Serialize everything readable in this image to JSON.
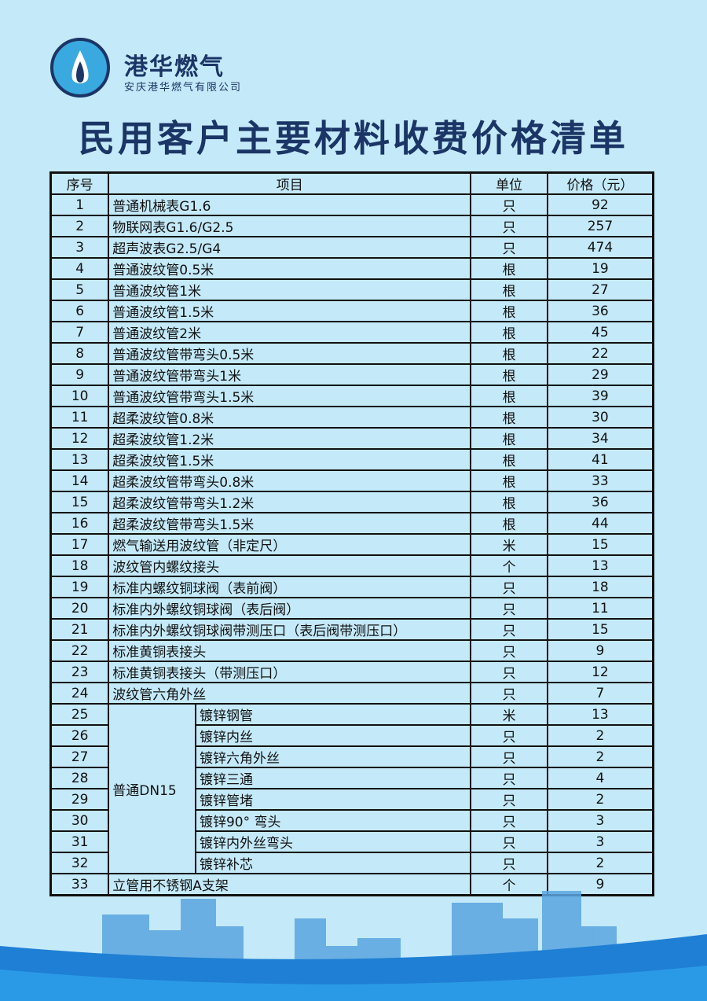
{
  "header": {
    "brand": "港华燃气",
    "company": "安庆港华燃气有限公司",
    "title": "民用客户主要材料收费价格清单"
  },
  "table": {
    "columns": [
      "序号",
      "项目",
      "单位",
      "价格（元）"
    ],
    "group_label": "普通DN15",
    "rows": [
      {
        "no": "1",
        "item": "普通机械表G1.6",
        "unit": "只",
        "price": "92"
      },
      {
        "no": "2",
        "item": "物联网表G1.6/G2.5",
        "unit": "只",
        "price": "257"
      },
      {
        "no": "3",
        "item": "超声波表G2.5/G4",
        "unit": "只",
        "price": "474"
      },
      {
        "no": "4",
        "item": "普通波纹管0.5米",
        "unit": "根",
        "price": "19"
      },
      {
        "no": "5",
        "item": "普通波纹管1米",
        "unit": "根",
        "price": "27"
      },
      {
        "no": "6",
        "item": "普通波纹管1.5米",
        "unit": "根",
        "price": "36"
      },
      {
        "no": "7",
        "item": "普通波纹管2米",
        "unit": "根",
        "price": "45"
      },
      {
        "no": "8",
        "item": "普通波纹管带弯头0.5米",
        "unit": "根",
        "price": "22"
      },
      {
        "no": "9",
        "item": "普通波纹管带弯头1米",
        "unit": "根",
        "price": "29"
      },
      {
        "no": "10",
        "item": "普通波纹管带弯头1.5米",
        "unit": "根",
        "price": "39"
      },
      {
        "no": "11",
        "item": "超柔波纹管0.8米",
        "unit": "根",
        "price": "30"
      },
      {
        "no": "12",
        "item": "超柔波纹管1.2米",
        "unit": "根",
        "price": "34"
      },
      {
        "no": "13",
        "item": "超柔波纹管1.5米",
        "unit": "根",
        "price": "41"
      },
      {
        "no": "14",
        "item": "超柔波纹管带弯头0.8米",
        "unit": "根",
        "price": "33"
      },
      {
        "no": "15",
        "item": "超柔波纹管带弯头1.2米",
        "unit": "根",
        "price": "36"
      },
      {
        "no": "16",
        "item": "超柔波纹管带弯头1.5米",
        "unit": "根",
        "price": "44"
      },
      {
        "no": "17",
        "item": "燃气输送用波纹管（非定尺）",
        "unit": "米",
        "price": "15"
      },
      {
        "no": "18",
        "item": "波纹管内螺纹接头",
        "unit": "个",
        "price": "13"
      },
      {
        "no": "19",
        "item": "标准内螺纹铜球阀（表前阀）",
        "unit": "只",
        "price": "18"
      },
      {
        "no": "20",
        "item": "标准内外螺纹铜球阀（表后阀）",
        "unit": "只",
        "price": "11"
      },
      {
        "no": "21",
        "item": "标准内外螺纹铜球阀带测压口（表后阀带测压口）",
        "unit": "只",
        "price": "15"
      },
      {
        "no": "22",
        "item": "标准黄铜表接头",
        "unit": "只",
        "price": "9"
      },
      {
        "no": "23",
        "item": "标准黄铜表接头（带测压口）",
        "unit": "只",
        "price": "12"
      },
      {
        "no": "24",
        "item": "波纹管六角外丝",
        "unit": "只",
        "price": "7"
      },
      {
        "no": "25",
        "item": "镀锌钢管",
        "unit": "米",
        "price": "13",
        "group": true
      },
      {
        "no": "26",
        "item": "镀锌内丝",
        "unit": "只",
        "price": "2",
        "group": true
      },
      {
        "no": "27",
        "item": "镀锌六角外丝",
        "unit": "只",
        "price": "2",
        "group": true
      },
      {
        "no": "28",
        "item": "镀锌三通",
        "unit": "只",
        "price": "4",
        "group": true
      },
      {
        "no": "29",
        "item": "镀锌管堵",
        "unit": "只",
        "price": "2",
        "group": true
      },
      {
        "no": "30",
        "item": "镀锌90° 弯头",
        "unit": "只",
        "price": "3",
        "group": true
      },
      {
        "no": "31",
        "item": "镀锌内外丝弯头",
        "unit": "只",
        "price": "3",
        "group": true
      },
      {
        "no": "32",
        "item": "镀锌补芯",
        "unit": "只",
        "price": "2",
        "group": true
      },
      {
        "no": "33",
        "item": "立管用不锈钢A支架",
        "unit": "个",
        "price": "9"
      }
    ]
  }
}
